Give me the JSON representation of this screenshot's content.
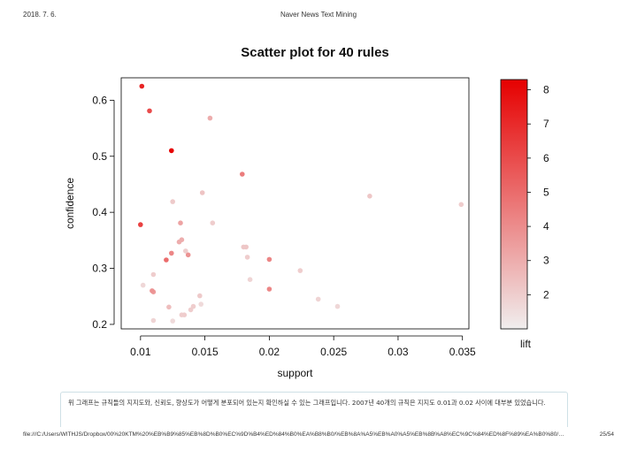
{
  "header": {
    "date": "2018. 7. 6.",
    "title": "Naver News Text Mining"
  },
  "footer": {
    "url": "file:///C:/Users/WITHJS/Dropbox/00%20KTM%20%EB%B9%85%EB%8D%B0%EC%9D%B4%ED%84%B0%EA%B8%B0/%EB%8A%A5%EB%A0%A5%EB%8B%A8%EC%9C%84%ED%8F%89%EA%B0%80/…",
    "page": "25/54"
  },
  "caption": "위 그래프는 규칙들의 지지도와, 신뢰도, 향상도가 어떻게 분포되어 있는지 확인하실 수 있는 그래프입니다. 2007년 40개의 규칙은 지지도 0.01과 0.02 사이에 대부분 있었습니다.",
  "chart_data": {
    "type": "scatter",
    "title": "Scatter plot for 40 rules",
    "xlabel": "support",
    "ylabel": "confidence",
    "xticks": [
      0.01,
      0.015,
      0.02,
      0.025,
      0.03,
      0.035
    ],
    "xtick_labels": [
      "0.01",
      "0.015",
      "0.02",
      "0.025",
      "0.03",
      "0.035"
    ],
    "yticks": [
      0.2,
      0.3,
      0.4,
      0.5,
      0.6
    ],
    "ytick_labels": [
      "0.2",
      "0.3",
      "0.4",
      "0.5",
      "0.6"
    ],
    "xlim": [
      0.0085,
      0.0355
    ],
    "ylim": [
      0.192,
      0.64
    ],
    "legend": {
      "label": "lift",
      "range": [
        1,
        8.3
      ],
      "ticks": [
        2,
        3,
        4,
        5,
        6,
        7,
        8
      ],
      "tick_labels": [
        "2",
        "3",
        "4",
        "5",
        "6",
        "7",
        "8"
      ],
      "color_low": "#f0eeee",
      "color_high": "#e60000"
    },
    "points": [
      {
        "x": 0.0101,
        "y": 0.625,
        "lift": 7.2
      },
      {
        "x": 0.0107,
        "y": 0.581,
        "lift": 6.0
      },
      {
        "x": 0.0154,
        "y": 0.568,
        "lift": 3.0
      },
      {
        "x": 0.0124,
        "y": 0.51,
        "lift": 8.3
      },
      {
        "x": 0.0179,
        "y": 0.468,
        "lift": 4.5
      },
      {
        "x": 0.0148,
        "y": 0.435,
        "lift": 2.3
      },
      {
        "x": 0.0278,
        "y": 0.429,
        "lift": 2.2
      },
      {
        "x": 0.0125,
        "y": 0.419,
        "lift": 2.1
      },
      {
        "x": 0.0349,
        "y": 0.414,
        "lift": 2.0
      },
      {
        "x": 0.0131,
        "y": 0.381,
        "lift": 3.3
      },
      {
        "x": 0.0156,
        "y": 0.381,
        "lift": 2.0
      },
      {
        "x": 0.01,
        "y": 0.378,
        "lift": 6.3
      },
      {
        "x": 0.0132,
        "y": 0.351,
        "lift": 3.0
      },
      {
        "x": 0.013,
        "y": 0.347,
        "lift": 3.0
      },
      {
        "x": 0.018,
        "y": 0.338,
        "lift": 2.2
      },
      {
        "x": 0.0182,
        "y": 0.338,
        "lift": 2.2
      },
      {
        "x": 0.0135,
        "y": 0.331,
        "lift": 2.0
      },
      {
        "x": 0.0124,
        "y": 0.327,
        "lift": 4.2
      },
      {
        "x": 0.0137,
        "y": 0.324,
        "lift": 3.8
      },
      {
        "x": 0.0183,
        "y": 0.32,
        "lift": 2.0
      },
      {
        "x": 0.012,
        "y": 0.315,
        "lift": 5.0
      },
      {
        "x": 0.02,
        "y": 0.316,
        "lift": 4.2
      },
      {
        "x": 0.0224,
        "y": 0.296,
        "lift": 2.0
      },
      {
        "x": 0.011,
        "y": 0.289,
        "lift": 2.0
      },
      {
        "x": 0.0185,
        "y": 0.28,
        "lift": 1.8
      },
      {
        "x": 0.0102,
        "y": 0.27,
        "lift": 1.7
      },
      {
        "x": 0.02,
        "y": 0.263,
        "lift": 4.2
      },
      {
        "x": 0.0109,
        "y": 0.26,
        "lift": 3.8
      },
      {
        "x": 0.011,
        "y": 0.258,
        "lift": 3.5
      },
      {
        "x": 0.0146,
        "y": 0.251,
        "lift": 2.1
      },
      {
        "x": 0.0238,
        "y": 0.245,
        "lift": 1.8
      },
      {
        "x": 0.0147,
        "y": 0.236,
        "lift": 1.6
      },
      {
        "x": 0.0141,
        "y": 0.232,
        "lift": 2.0
      },
      {
        "x": 0.0253,
        "y": 0.232,
        "lift": 1.7
      },
      {
        "x": 0.0122,
        "y": 0.231,
        "lift": 2.5
      },
      {
        "x": 0.0139,
        "y": 0.226,
        "lift": 2.0
      },
      {
        "x": 0.0132,
        "y": 0.217,
        "lift": 2.0
      },
      {
        "x": 0.0134,
        "y": 0.217,
        "lift": 2.0
      },
      {
        "x": 0.011,
        "y": 0.207,
        "lift": 1.8
      },
      {
        "x": 0.0125,
        "y": 0.206,
        "lift": 1.6
      }
    ]
  }
}
